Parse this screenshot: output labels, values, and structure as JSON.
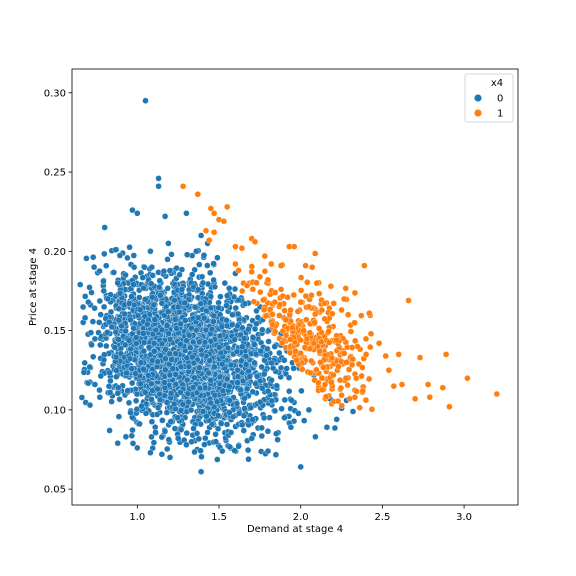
{
  "chart_data": {
    "type": "scatter",
    "xlabel": "Demand at stage 4",
    "ylabel": "Price at stage 4",
    "xlim": [
      0.6,
      3.33
    ],
    "ylim": [
      0.04,
      0.315
    ],
    "xticks": [
      "1.0",
      "1.5",
      "2.0",
      "2.5",
      "3.0"
    ],
    "yticks": [
      "0.05",
      "0.10",
      "0.15",
      "0.20",
      "0.25",
      "0.30"
    ],
    "grid": false,
    "legend": {
      "title": "x4",
      "placement": "top-right",
      "entries": [
        {
          "label": "0",
          "color": "#1f77b4"
        },
        {
          "label": "1",
          "color": "#ff7f0e"
        }
      ]
    },
    "series": [
      {
        "name": "0",
        "color": "#1f77b4",
        "points": [
          [
            1.05,
            0.295
          ],
          [
            1.13,
            0.246
          ],
          [
            1.13,
            0.241
          ],
          [
            0.97,
            0.226
          ],
          [
            1.0,
            0.224
          ],
          [
            1.17,
            0.222
          ],
          [
            0.8,
            0.215
          ],
          [
            1.3,
            0.224
          ],
          [
            1.39,
            0.21
          ],
          [
            0.65,
            0.179
          ],
          [
            0.7,
            0.168
          ],
          [
            0.68,
            0.158
          ],
          [
            0.72,
            0.141
          ],
          [
            0.74,
            0.116
          ],
          [
            0.71,
            0.103
          ],
          [
            0.77,
            0.108
          ],
          [
            0.83,
            0.087
          ],
          [
            0.88,
            0.079
          ],
          [
            0.93,
            0.083
          ],
          [
            1.0,
            0.076
          ],
          [
            1.08,
            0.073
          ],
          [
            1.15,
            0.072
          ],
          [
            1.2,
            0.07
          ],
          [
            1.3,
            0.078
          ],
          [
            1.39,
            0.061
          ],
          [
            1.52,
            0.074
          ],
          [
            1.62,
            0.077
          ],
          [
            1.8,
            0.074
          ],
          [
            2.0,
            0.064
          ],
          [
            2.09,
            0.083
          ],
          [
            2.16,
            0.089
          ],
          [
            2.22,
            0.094
          ],
          [
            2.32,
            0.099
          ],
          [
            2.28,
            0.106
          ],
          [
            2.25,
            0.101
          ],
          [
            1.85,
            0.085
          ],
          [
            1.94,
            0.089
          ],
          [
            1.7,
            0.082
          ],
          [
            1.48,
            0.08
          ],
          [
            1.25,
            0.082
          ],
          [
            1.6,
            0.186
          ],
          [
            1.55,
            0.172
          ],
          [
            1.49,
            0.196
          ],
          [
            1.43,
            0.205
          ],
          [
            1.36,
            0.2
          ],
          [
            1.19,
            0.205
          ],
          [
            1.08,
            0.2
          ],
          [
            0.98,
            0.19
          ],
          [
            0.88,
            0.18
          ],
          [
            0.82,
            0.17
          ],
          [
            1.75,
            0.165
          ],
          [
            1.82,
            0.156
          ],
          [
            1.88,
            0.148
          ],
          [
            1.95,
            0.14
          ],
          [
            2.02,
            0.13
          ],
          [
            2.08,
            0.122
          ],
          [
            2.14,
            0.113
          ],
          [
            2.18,
            0.107
          ],
          [
            2.05,
            0.1
          ],
          [
            1.9,
            0.095
          ]
        ],
        "cloud": {
          "x_center": 1.3,
          "x_spread": 0.27,
          "y_center": 0.135,
          "y_spread": 0.026,
          "count": 2600,
          "boundary": "x + 7.5*y <= 2.95"
        }
      },
      {
        "name": "1",
        "color": "#ff7f0e",
        "points": [
          [
            1.28,
            0.241
          ],
          [
            1.37,
            0.236
          ],
          [
            1.55,
            0.228
          ],
          [
            1.45,
            0.227
          ],
          [
            1.47,
            0.224
          ],
          [
            1.5,
            0.22
          ],
          [
            1.53,
            0.219
          ],
          [
            1.42,
            0.213
          ],
          [
            1.47,
            0.212
          ],
          [
            1.44,
            0.207
          ],
          [
            1.7,
            0.208
          ],
          [
            1.72,
            0.206
          ],
          [
            1.6,
            0.203
          ],
          [
            1.64,
            0.202
          ],
          [
            1.93,
            0.203
          ],
          [
            1.96,
            0.203
          ],
          [
            1.78,
            0.197
          ],
          [
            1.82,
            0.192
          ],
          [
            1.88,
            0.191
          ],
          [
            2.03,
            0.191
          ],
          [
            2.07,
            0.19
          ],
          [
            2.39,
            0.191
          ],
          [
            1.6,
            0.192
          ],
          [
            1.62,
            0.188
          ],
          [
            1.7,
            0.187
          ],
          [
            1.75,
            0.184
          ],
          [
            1.8,
            0.182
          ],
          [
            1.88,
            0.176
          ],
          [
            1.92,
            0.171
          ],
          [
            2.0,
            0.168
          ],
          [
            2.05,
            0.165
          ],
          [
            2.25,
            0.163
          ],
          [
            2.29,
            0.16
          ],
          [
            2.33,
            0.155
          ],
          [
            2.42,
            0.161
          ],
          [
            2.43,
            0.148
          ],
          [
            2.48,
            0.142
          ],
          [
            2.66,
            0.169
          ],
          [
            2.4,
            0.135
          ],
          [
            2.52,
            0.134
          ],
          [
            2.54,
            0.125
          ],
          [
            2.6,
            0.135
          ],
          [
            2.62,
            0.116
          ],
          [
            2.57,
            0.115
          ],
          [
            2.7,
            0.107
          ],
          [
            2.73,
            0.133
          ],
          [
            2.78,
            0.116
          ],
          [
            2.79,
            0.108
          ],
          [
            2.87,
            0.114
          ],
          [
            2.91,
            0.102
          ],
          [
            2.89,
            0.135
          ],
          [
            3.02,
            0.12
          ],
          [
            3.2,
            0.11
          ],
          [
            2.28,
            0.13
          ],
          [
            2.34,
            0.12
          ],
          [
            2.38,
            0.112
          ],
          [
            2.3,
            0.107
          ],
          [
            2.2,
            0.122
          ],
          [
            2.12,
            0.13
          ],
          [
            2.08,
            0.142
          ]
        ],
        "cloud": {
          "x_center": 1.98,
          "x_spread": 0.22,
          "y_center": 0.14,
          "y_spread": 0.022,
          "count": 330,
          "boundary": "x + 7.5*y > 2.95"
        }
      }
    ]
  }
}
